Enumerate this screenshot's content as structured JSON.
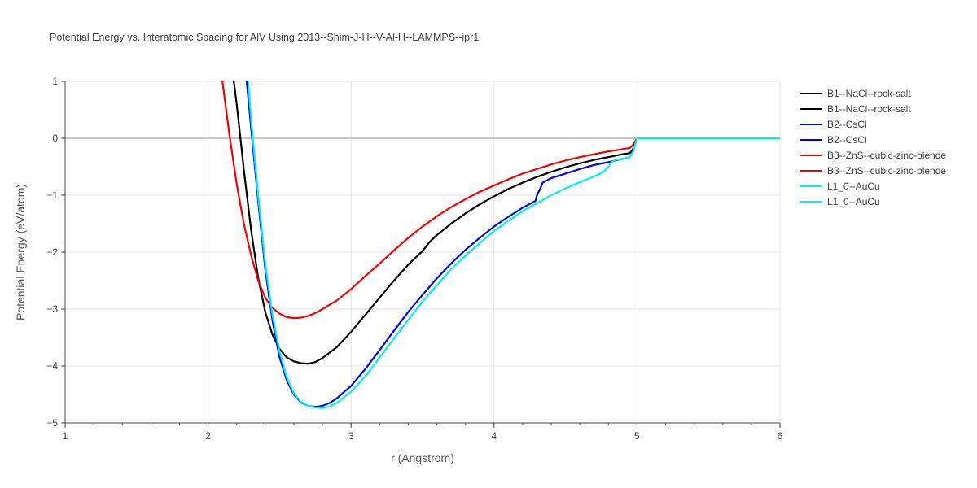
{
  "chart_data": {
    "type": "line",
    "title": "Potential Energy vs. Interatomic Spacing for AlV Using 2013--Shim-J-H--V-Al-H--LAMMPS--ipr1",
    "xlabel": "r (Angstrom)",
    "ylabel": "Potential Energy (eV/atom)",
    "xlim": [
      1,
      6
    ],
    "ylim": [
      -5,
      1
    ],
    "x_ticks": [
      "1",
      "2",
      "3",
      "4",
      "5",
      "6"
    ],
    "y_ticks": [
      "1",
      "0",
      "−1",
      "−2",
      "−3",
      "−4",
      "−5"
    ],
    "grid": true,
    "legend_position": "right",
    "series": [
      {
        "name": "B1--NaCl--rock-salt",
        "color": "#000000",
        "x": [
          2.18,
          2.2,
          2.22,
          2.25,
          2.3,
          2.35,
          2.4,
          2.45,
          2.5,
          2.55,
          2.6,
          2.65,
          2.7,
          2.75,
          2.8,
          2.9,
          3.0,
          3.1,
          3.2,
          3.3,
          3.4,
          3.5,
          3.55,
          3.6,
          3.7,
          3.8,
          3.9,
          4.0,
          4.1,
          4.2,
          4.3,
          4.4,
          4.5,
          4.6,
          4.7,
          4.8,
          4.9,
          4.95,
          4.97,
          5.0,
          5.5,
          6.0
        ],
        "y": [
          1.0,
          0.6,
          0.15,
          -0.55,
          -1.6,
          -2.45,
          -3.05,
          -3.45,
          -3.7,
          -3.85,
          -3.92,
          -3.95,
          -3.96,
          -3.93,
          -3.86,
          -3.67,
          -3.4,
          -3.1,
          -2.8,
          -2.5,
          -2.22,
          -1.98,
          -1.82,
          -1.7,
          -1.5,
          -1.32,
          -1.16,
          -1.02,
          -0.89,
          -0.78,
          -0.68,
          -0.59,
          -0.51,
          -0.44,
          -0.38,
          -0.33,
          -0.28,
          -0.26,
          -0.2,
          0.0,
          0.0,
          0.0
        ]
      },
      {
        "name": "B1--NaCl--rock-salt",
        "color": "#000000",
        "x": [
          2.18,
          2.2,
          2.22,
          2.25,
          2.3,
          2.35,
          2.4,
          2.45,
          2.5,
          2.55,
          2.6,
          2.65,
          2.7,
          2.75,
          2.8,
          2.9,
          3.0,
          3.1,
          3.2,
          3.3,
          3.4,
          3.5,
          3.55,
          3.6,
          3.7,
          3.8,
          3.9,
          4.0,
          4.1,
          4.2,
          4.3,
          4.4,
          4.5,
          4.6,
          4.7,
          4.8,
          4.9,
          4.95,
          4.97,
          5.0,
          5.5,
          6.0
        ],
        "y": [
          1.0,
          0.6,
          0.15,
          -0.55,
          -1.6,
          -2.45,
          -3.05,
          -3.45,
          -3.7,
          -3.85,
          -3.92,
          -3.95,
          -3.96,
          -3.93,
          -3.86,
          -3.67,
          -3.4,
          -3.1,
          -2.8,
          -2.5,
          -2.22,
          -1.98,
          -1.82,
          -1.7,
          -1.5,
          -1.32,
          -1.16,
          -1.02,
          -0.89,
          -0.78,
          -0.68,
          -0.59,
          -0.51,
          -0.44,
          -0.38,
          -0.33,
          -0.28,
          -0.26,
          -0.2,
          0.0,
          0.0,
          0.0
        ]
      },
      {
        "name": "B2--CsCl",
        "color": "#0000ee",
        "x": [
          2.27,
          2.3,
          2.35,
          2.4,
          2.45,
          2.5,
          2.55,
          2.6,
          2.65,
          2.7,
          2.75,
          2.8,
          2.85,
          2.9,
          3.0,
          3.1,
          3.2,
          3.3,
          3.4,
          3.5,
          3.6,
          3.7,
          3.8,
          3.9,
          4.0,
          4.1,
          4.2,
          4.29,
          4.3,
          4.32,
          4.34,
          4.4,
          4.5,
          4.6,
          4.7,
          4.8,
          4.9,
          4.95,
          4.97,
          5.0,
          5.5,
          6.0
        ],
        "y": [
          1.0,
          0.2,
          -1.1,
          -2.3,
          -3.2,
          -3.85,
          -4.25,
          -4.5,
          -4.64,
          -4.7,
          -4.72,
          -4.7,
          -4.65,
          -4.57,
          -4.35,
          -4.05,
          -3.72,
          -3.38,
          -3.05,
          -2.75,
          -2.46,
          -2.2,
          -1.96,
          -1.75,
          -1.55,
          -1.38,
          -1.22,
          -1.1,
          -1.0,
          -0.9,
          -0.78,
          -0.7,
          -0.62,
          -0.54,
          -0.47,
          -0.42,
          -0.36,
          -0.33,
          -0.25,
          0.0,
          0.0,
          0.0
        ]
      },
      {
        "name": "B2--CsCl",
        "color": "#0000ee",
        "x": [
          2.27,
          2.3,
          2.35,
          2.4,
          2.45,
          2.5,
          2.55,
          2.6,
          2.65,
          2.7,
          2.75,
          2.8,
          2.85,
          2.9,
          3.0,
          3.1,
          3.2,
          3.3,
          3.4,
          3.5,
          3.6,
          3.7,
          3.8,
          3.9,
          4.0,
          4.1,
          4.2,
          4.29,
          4.3,
          4.32,
          4.34,
          4.4,
          4.5,
          4.6,
          4.7,
          4.8,
          4.9,
          4.95,
          4.97,
          5.0,
          5.5,
          6.0
        ],
        "y": [
          1.0,
          0.2,
          -1.1,
          -2.3,
          -3.2,
          -3.85,
          -4.25,
          -4.5,
          -4.64,
          -4.7,
          -4.72,
          -4.7,
          -4.65,
          -4.57,
          -4.35,
          -4.05,
          -3.72,
          -3.38,
          -3.05,
          -2.75,
          -2.46,
          -2.2,
          -1.96,
          -1.75,
          -1.55,
          -1.38,
          -1.22,
          -1.1,
          -1.0,
          -0.9,
          -0.78,
          -0.7,
          -0.62,
          -0.54,
          -0.47,
          -0.42,
          -0.36,
          -0.33,
          -0.25,
          0.0,
          0.0,
          0.0
        ]
      },
      {
        "name": "B3--ZnS--cubic-zinc-blende",
        "color": "#ee0000",
        "x": [
          2.1,
          2.15,
          2.2,
          2.25,
          2.3,
          2.35,
          2.4,
          2.45,
          2.5,
          2.55,
          2.6,
          2.65,
          2.7,
          2.75,
          2.8,
          2.9,
          3.0,
          3.1,
          3.2,
          3.3,
          3.4,
          3.5,
          3.6,
          3.7,
          3.8,
          3.9,
          4.0,
          4.1,
          4.2,
          4.3,
          4.4,
          4.5,
          4.6,
          4.7,
          4.8,
          4.9,
          4.95,
          4.97,
          5.0,
          5.5,
          6.0
        ],
        "y": [
          1.0,
          0.05,
          -0.8,
          -1.5,
          -2.05,
          -2.5,
          -2.8,
          -2.98,
          -3.08,
          -3.14,
          -3.16,
          -3.15,
          -3.12,
          -3.07,
          -3.0,
          -2.85,
          -2.65,
          -2.42,
          -2.2,
          -1.97,
          -1.75,
          -1.55,
          -1.37,
          -1.21,
          -1.07,
          -0.94,
          -0.83,
          -0.72,
          -0.62,
          -0.54,
          -0.46,
          -0.39,
          -0.33,
          -0.28,
          -0.23,
          -0.19,
          -0.17,
          -0.12,
          0.0,
          0.0,
          0.0
        ]
      },
      {
        "name": "B3--ZnS--cubic-zinc-blende",
        "color": "#ee0000",
        "x": [
          2.1,
          2.15,
          2.2,
          2.25,
          2.3,
          2.35,
          2.4,
          2.45,
          2.5,
          2.55,
          2.6,
          2.65,
          2.7,
          2.75,
          2.8,
          2.9,
          3.0,
          3.1,
          3.2,
          3.3,
          3.4,
          3.5,
          3.6,
          3.7,
          3.8,
          3.9,
          4.0,
          4.1,
          4.2,
          4.3,
          4.4,
          4.5,
          4.6,
          4.7,
          4.8,
          4.9,
          4.95,
          4.97,
          5.0,
          5.5,
          6.0
        ],
        "y": [
          1.0,
          0.05,
          -0.8,
          -1.5,
          -2.05,
          -2.5,
          -2.8,
          -2.98,
          -3.08,
          -3.14,
          -3.16,
          -3.15,
          -3.12,
          -3.07,
          -3.0,
          -2.85,
          -2.65,
          -2.42,
          -2.2,
          -1.97,
          -1.75,
          -1.55,
          -1.37,
          -1.21,
          -1.07,
          -0.94,
          -0.83,
          -0.72,
          -0.62,
          -0.54,
          -0.46,
          -0.39,
          -0.33,
          -0.28,
          -0.23,
          -0.19,
          -0.17,
          -0.12,
          0.0,
          0.0,
          0.0
        ]
      },
      {
        "name": "L1_0--AuCu",
        "color": "#00eeee",
        "x": [
          2.28,
          2.3,
          2.35,
          2.4,
          2.45,
          2.5,
          2.55,
          2.6,
          2.65,
          2.7,
          2.75,
          2.8,
          2.85,
          2.9,
          3.0,
          3.1,
          3.2,
          3.3,
          3.4,
          3.5,
          3.6,
          3.7,
          3.8,
          3.9,
          4.0,
          4.1,
          4.2,
          4.3,
          4.4,
          4.5,
          4.6,
          4.7,
          4.76,
          4.8,
          4.82,
          4.85,
          4.9,
          4.95,
          4.97,
          5.0,
          5.5,
          6.0
        ],
        "y": [
          1.0,
          0.35,
          -1.0,
          -2.2,
          -3.1,
          -3.75,
          -4.2,
          -4.48,
          -4.63,
          -4.7,
          -4.73,
          -4.74,
          -4.71,
          -4.65,
          -4.45,
          -4.18,
          -3.85,
          -3.52,
          -3.19,
          -2.87,
          -2.58,
          -2.3,
          -2.06,
          -1.84,
          -1.63,
          -1.45,
          -1.28,
          -1.14,
          -1.0,
          -0.88,
          -0.77,
          -0.67,
          -0.6,
          -0.5,
          -0.42,
          -0.38,
          -0.36,
          -0.33,
          -0.25,
          0.0,
          0.0,
          0.0
        ]
      },
      {
        "name": "L1_0--AuCu",
        "color": "#00eeee",
        "x": [
          2.28,
          2.3,
          2.35,
          2.4,
          2.45,
          2.5,
          2.55,
          2.6,
          2.65,
          2.7,
          2.75,
          2.8,
          2.85,
          2.9,
          3.0,
          3.1,
          3.2,
          3.3,
          3.4,
          3.5,
          3.6,
          3.7,
          3.8,
          3.9,
          4.0,
          4.1,
          4.2,
          4.3,
          4.4,
          4.5,
          4.6,
          4.7,
          4.76,
          4.8,
          4.82,
          4.85,
          4.9,
          4.95,
          4.97,
          5.0,
          5.5,
          6.0
        ],
        "y": [
          1.0,
          0.35,
          -1.0,
          -2.2,
          -3.1,
          -3.75,
          -4.2,
          -4.48,
          -4.63,
          -4.7,
          -4.73,
          -4.74,
          -4.71,
          -4.65,
          -4.45,
          -4.18,
          -3.85,
          -3.52,
          -3.19,
          -2.87,
          -2.58,
          -2.3,
          -2.06,
          -1.84,
          -1.63,
          -1.45,
          -1.28,
          -1.14,
          -1.0,
          -0.88,
          -0.77,
          -0.67,
          -0.6,
          -0.5,
          -0.42,
          -0.38,
          -0.36,
          -0.33,
          -0.25,
          0.0,
          0.0,
          0.0
        ]
      }
    ]
  }
}
